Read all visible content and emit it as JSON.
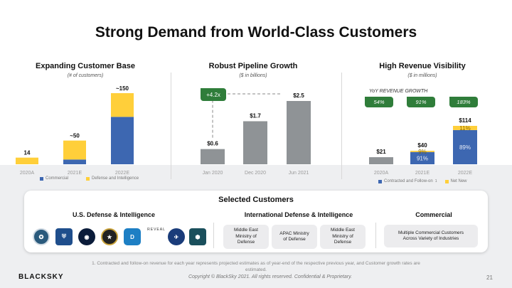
{
  "title": "Strong Demand from World-Class Customers",
  "colors": {
    "blue": "#3d67b1",
    "yellow": "#ffcf3a",
    "gray": "#8f9396",
    "green": "#2f7d3a"
  },
  "chart_data": [
    {
      "type": "bar",
      "title": "Expanding Customer Base",
      "ylabel": "(# of customers)",
      "categories": [
        "2020A",
        "2021E",
        "2022E"
      ],
      "series": [
        {
          "name": "Commercial",
          "values": [
            0,
            10,
            100
          ]
        },
        {
          "name": "Defense and Intelligence",
          "values": [
            14,
            40,
            50
          ]
        }
      ],
      "total_labels": [
        "14",
        "~50",
        "~150"
      ],
      "ylim": [
        0,
        150
      ],
      "legend": [
        "Commercial",
        "Defense and Intelligence"
      ]
    },
    {
      "type": "bar",
      "title": "Robust Pipeline Growth",
      "ylabel": "($ in billions)",
      "categories": [
        "Jan 2020",
        "Dec 2020",
        "Jun 2021"
      ],
      "values": [
        0.6,
        1.7,
        2.5
      ],
      "value_labels": [
        "$0.6",
        "$1.7",
        "$2.5"
      ],
      "annotation": "+4.2x",
      "ylim": [
        0,
        2.5
      ]
    },
    {
      "type": "bar",
      "title": "High Revenue Visibility",
      "ylabel": "($ in millions)",
      "categories": [
        "2020A",
        "2021E",
        "2022E"
      ],
      "series": [
        {
          "name": "Contracted and Follow-on",
          "values": [
            21,
            36.4,
            101.5
          ]
        },
        {
          "name": "Net New",
          "values": [
            0,
            3.6,
            12.5
          ]
        }
      ],
      "total_labels": [
        "$21",
        "$40",
        "$114"
      ],
      "segment_labels": {
        "contracted": [
          "",
          "91%",
          "89%"
        ],
        "net_new": [
          "",
          "9%",
          "11%"
        ]
      },
      "growth_label": "YoY REVENUE GROWTH",
      "growth_values": [
        "54%",
        "91%",
        "183%"
      ],
      "ylim": [
        0,
        114
      ],
      "legend": [
        "Contracted and Follow-on",
        "1",
        "Net New"
      ]
    }
  ],
  "customers": {
    "title": "Selected Customers",
    "col1_title": "U.S. Defense & Intelligence",
    "col2_title": "International  Defense & Intelligence",
    "col3_title": "Commercial",
    "intl_boxes": [
      "Middle East\nMinistry of\nDefense",
      "APAC Ministry\nof Defense",
      "Middle East\nMinistry of\nDefense"
    ],
    "commercial_box": "Multiple Commercial Customers\nAcross Variety of Industries",
    "logo_text": "REVEAL"
  },
  "footnote": "1. Contracted and follow-on revenue for each year represents projected estimates as of year-end of the respective previous year, and Customer growth rates are estimated.",
  "copyright": "Copyright © BlackSky 2021. All rights reserved. Confidential & Proprietary.",
  "brand": "BLACKSKY",
  "page_number": "21"
}
